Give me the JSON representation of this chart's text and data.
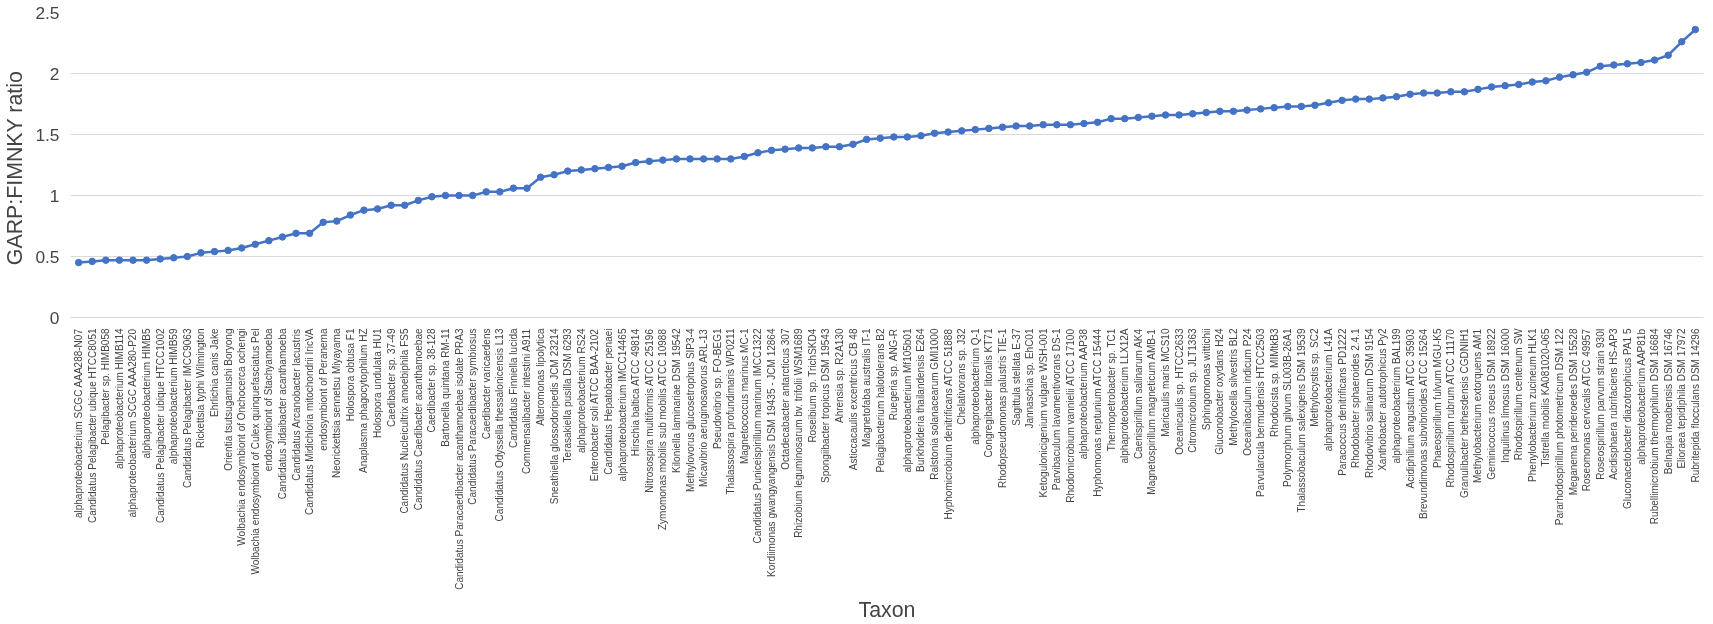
{
  "chart_data": {
    "type": "line",
    "xlabel": "Taxon",
    "ylabel": "GARP:FIMNKY  ratio",
    "categories": [
      "alphaproteobacterium SCGC AAA288-N07",
      "Candidatus Pelagibacter ubique HTCC8051",
      "Pelagibacter sp. HIMB058",
      "alphaproteobacterium HIMB114",
      "alphaproteobacterium SCGC AAA280-P20",
      "alphaproteobacterium HIMB5",
      "Candidatus Pelagibacter ubique HTCC1002",
      "alphaproteobacterium HIMB59",
      "Candidatus Pelagibacter IMCC9063",
      "Rickettsia typhi Wilmington",
      "Ehrlichia canis Jake",
      "Orientia tsutsugamushi Boryong",
      "Wolbachia endosymbiont of Onchocerca ochengi",
      "Wolbachia endosymbiont of Culex quinquefasciatus Pel",
      "endosymbiont of Stachyamoeba",
      "Candidatus Jidaibacter acanthamoeba",
      "Candidatus Arcanobacter lacustris",
      "Candidatus Midichloria mitochondrii IricVA",
      "endosymbiont of Peranema",
      "Neorickettsia sennetsu Miyayama",
      "Holospora obtusa F1",
      "Anaplasma phagocytophilum HZ",
      "Holospora undulata HU1",
      "Caedibacter sp. 37-49",
      "Candidatus Nucleicultrix amoebiphila FS5",
      "Candidatus Caedibacter acanthamoebae",
      "Caedibacter sp. 38-128",
      "Bartonella quintana RM-11",
      "Candidatus Paracaedibacter acanthamoebae isolate PRA3",
      "Candidatus Paracaedibacter symbiosus",
      "Caedibacter varicaedens",
      "Candidatus Odyssella thessalonicensis L13",
      "Candidatus Finniella lucida",
      "Commensalibacter intestini A911",
      "Alteromonas lipolytica",
      "Sneathiella glossodoripedis JCM 23214",
      "Terasakiella pusilla DSM 6293",
      "alphaproteobacterium RS24",
      "Enterobacter soli ATCC BAA-2102",
      "Candidatus Hepatobacter penaei",
      "alphaproteobacterium IMCC14465",
      "Hirschia baltica ATCC 49814",
      "Nitrosospira multiformis ATCC 25196",
      "Zymomonas mobilis sub mobilis ATCC 10988",
      "Kiloniella laminariae DSM 19542",
      "Methylovorus glucosetrophus SIP3-4",
      "Micavibrio aeruginosavorus ARL-13",
      "Pseudovibrio sp. FO-BEG1",
      "Thalassospira profundimaris WP0211",
      "Magnetococcus marinus MC-1",
      "Candidatus Puniceispirillum marinum IMCC1322",
      "Kordiimonas gwangyangensis DSM 19435 - JCM 12864",
      "Octadecabacter antarcticus 307",
      "Rhizobium leguminosarum bv. trifolii WSM1689",
      "Roseibium sp. TrichSKD4",
      "Spongiibacter tropicus DSM 19543",
      "Ahrensia sp. R2A130",
      "Asticcacaulis excentricus CB 48",
      "Magnetofaba australis IT-1",
      "Pelagibacterium halotolerans B2",
      "Ruegeria sp. ANG-R",
      "alphaproteobacterium Mf105b01",
      "Burkholderia thailandensis E264",
      "Ralstonia solanacearum GMI1000",
      "Hyphomicrobium denitrificans ATCC 51888",
      "Chelativorans sp. J32",
      "alphaproteobacterium Q-1",
      "Congregibacter litoralis KT71",
      "Rhodopseudomonas palustris TIE-1",
      "Sagittula stellata E-37",
      "Jannaschia sp. EhC01",
      "Ketogulonicigenium vulgare WSH-001",
      "Parvibaculum lavamentivorans DS-1",
      "Rhodomicrobium vannielii ATCC 17100",
      "alphaproteobacterium AAP38",
      "Hyphomonas neptunium ATCC 15444",
      "Thermopetrobacter sp. TC1",
      "alphaproteobacterium LLX12A",
      "Caenispirillum salinarum AK4",
      "Magnetospirillum magneticum AMB-1",
      "Maricaulis maris MCS10",
      "Oceanicaulis sp. HTCC2633",
      "Citromicrobium sp. JLT1363",
      "Sphingomonas wittichii",
      "Gluconobacter oxydans H24",
      "Methylocella silvestris BL2",
      "Oceanibaculum indicum P24",
      "Parvularcula bermudensis HTCC2503",
      "Rhodocista sp. MIMtkB3",
      "Polymorphum gilvum SL003B-26A1",
      "Thalassobaculum salexigens DSM 19539",
      "Methylocystis sp. SC2",
      "alphaproteobacterium L41A",
      "Paracoccus denitrificans PD1222",
      "Rhodobacter sphaeroides 2.4.1",
      "Rhodovibrio salinarum DSM 9154",
      "Xanthobacter autotrophicus Py2",
      "alphaproteobacterium BAL199",
      "Acidiphilium angustum ATCC 35903",
      "Brevundimonas subvibrioides ATCC 15264",
      "Phaeospirillum fulvum MGU-K5",
      "Rhodospirillum rubrum ATCC 11170",
      "Granulibacter bethesdensis CGDNIH1",
      "Methylobacterium extorquens AM1",
      "Geminicoccus roseus DSM 18922",
      "Inquilinus limosus DSM 16000",
      "Rhodospirillum centenum SW",
      "Phenylobacterium zucineum HLK1",
      "Tistrella mobilis KA081020-065",
      "Pararhodospirillum photometricum DSM 122",
      "Meganema perideroedes DSM 15528",
      "Roseomonas cervicalis ATCC 49957",
      "Roseospirillum parvum strain 930I",
      "Acidisphaera rubrifaciens HS-AP3",
      "Gluconacetobacter diazotrophicus PA1 5",
      "alphaproteobacterium AAP81b",
      "Rubellimicrobium thermophilum DSM 16684",
      "Belnapia moabensis DSM 16746",
      "Elioraea tepidiphila DSM 17972",
      "Rubritepida flocculans DSM 14296"
    ],
    "series": [
      {
        "color": "#4472c4",
        "values": [
          0.45,
          0.46,
          0.47,
          0.47,
          0.47,
          0.47,
          0.48,
          0.49,
          0.5,
          0.53,
          0.54,
          0.55,
          0.57,
          0.6,
          0.63,
          0.66,
          0.69,
          0.69,
          0.78,
          0.79,
          0.84,
          0.88,
          0.89,
          0.92,
          0.92,
          0.96,
          0.99,
          1.0,
          1.0,
          1.0,
          1.03,
          1.03,
          1.06,
          1.06,
          1.15,
          1.17,
          1.2,
          1.21,
          1.22,
          1.23,
          1.24,
          1.27,
          1.28,
          1.29,
          1.3,
          1.3,
          1.3,
          1.3,
          1.3,
          1.32,
          1.35,
          1.37,
          1.38,
          1.39,
          1.39,
          1.4,
          1.4,
          1.42,
          1.46,
          1.47,
          1.48,
          1.48,
          1.49,
          1.51,
          1.52,
          1.53,
          1.54,
          1.55,
          1.56,
          1.57,
          1.57,
          1.58,
          1.58,
          1.58,
          1.59,
          1.6,
          1.63,
          1.63,
          1.64,
          1.65,
          1.66,
          1.66,
          1.67,
          1.68,
          1.69,
          1.69,
          1.7,
          1.71,
          1.72,
          1.73,
          1.73,
          1.74,
          1.76,
          1.78,
          1.79,
          1.79,
          1.8,
          1.81,
          1.83,
          1.84,
          1.84,
          1.85,
          1.85,
          1.87,
          1.89,
          1.9,
          1.91,
          1.93,
          1.94,
          1.97,
          1.99,
          2.01,
          2.06,
          2.07,
          2.08,
          2.09,
          2.11,
          2.15,
          2.26,
          2.36
        ]
      }
    ],
    "ylim": [
      0,
      2.5
    ],
    "yticks": [
      0,
      0.5,
      1,
      1.5,
      2,
      2.5
    ],
    "grid": "y",
    "marker": "circle",
    "line_style": "solid"
  }
}
